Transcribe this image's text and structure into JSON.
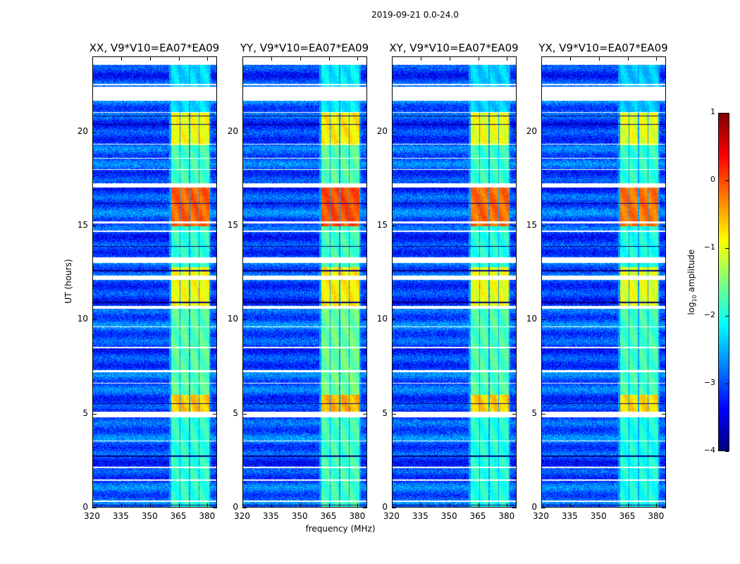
{
  "chart_data": {
    "type": "heatmap",
    "title": "2019-09-21 0.0-24.0",
    "xlabel": "frequency (MHz)",
    "ylabel": "UT (hours)",
    "xlim": [
      320,
      385
    ],
    "ylim": [
      0,
      24
    ],
    "xticks": [
      320,
      335,
      350,
      365,
      380
    ],
    "xtick_labels": [
      "320",
      "335",
      "350",
      "365",
      "380"
    ],
    "yticks": [
      0,
      5,
      10,
      15,
      20
    ],
    "ytick_labels": [
      "0",
      "5",
      "10",
      "15",
      "20"
    ],
    "panels": [
      {
        "title": "XX, V9*V10=EA07*EA09",
        "level_offset": 0
      },
      {
        "title": "YY, V9*V10=EA07*EA09",
        "level_offset": 0.1
      },
      {
        "title": "XY, V9*V10=EA07*EA09",
        "level_offset": -0.05
      },
      {
        "title": "YX, V9*V10=EA07*EA09",
        "level_offset": -0.1
      }
    ],
    "colorbar": {
      "label_main": "log",
      "label_sub": "10",
      "label_rest": " amplitude",
      "range": [
        -4,
        1
      ],
      "ticks": [
        1,
        0,
        -1,
        -2,
        -3,
        -4
      ],
      "tick_labels": [
        "1",
        "0",
        "−1",
        "−2",
        "−3",
        "−4"
      ],
      "colormap": "jet"
    },
    "background_log_amplitude": -3.0,
    "subbands_mhz": [
      [
        361,
        365.5
      ],
      [
        366,
        370.5
      ],
      [
        371,
        375.5
      ],
      [
        376,
        381
      ]
    ],
    "band_activity_log_amplitude": [
      {
        "t": [
          0,
          4.8
        ],
        "level": -1.9
      },
      {
        "t": [
          5.0,
          6.0
        ],
        "level": -0.6
      },
      {
        "t": [
          6.0,
          10.6
        ],
        "level": -1.7
      },
      {
        "t": [
          10.7,
          12.8
        ],
        "level": -0.9
      },
      {
        "t": [
          12.8,
          15.0
        ],
        "level": -1.9
      },
      {
        "t": [
          15.0,
          17.2
        ],
        "level": -0.1
      },
      {
        "t": [
          17.3,
          19.3
        ],
        "level": -1.8
      },
      {
        "t": [
          19.3,
          21.1
        ],
        "level": -0.9
      },
      {
        "t": [
          21.1,
          24.0
        ],
        "level": -2.3
      }
    ],
    "flagged_hours": [
      [
        21.7,
        22.45
      ],
      [
        22.5,
        22.6
      ],
      [
        17.05,
        17.3
      ],
      [
        13.05,
        13.35
      ],
      [
        12.15,
        12.35
      ],
      [
        10.6,
        10.75
      ],
      [
        4.8,
        5.1
      ],
      [
        1.4,
        1.5
      ],
      [
        0.3,
        0.35
      ],
      [
        2.1,
        2.15
      ],
      [
        3.5,
        3.55
      ],
      [
        6.6,
        6.65
      ],
      [
        7.2,
        7.3
      ],
      [
        8.5,
        8.55
      ],
      [
        9.6,
        9.65
      ],
      [
        14.7,
        14.75
      ],
      [
        15.15,
        15.25
      ],
      [
        18.0,
        18.05
      ],
      [
        18.6,
        18.65
      ],
      [
        19.35,
        19.4
      ],
      [
        21.05,
        21.1
      ],
      [
        23.6,
        24.0
      ]
    ],
    "null_hours": [
      [
        0.1,
        0.15
      ],
      [
        2.7,
        2.75
      ],
      [
        5.5,
        5.55
      ],
      [
        10.9,
        10.95
      ],
      [
        12.6,
        12.65
      ],
      [
        13.9,
        13.95
      ],
      [
        16.2,
        16.25
      ],
      [
        20.85,
        20.9
      ],
      [
        20.4,
        20.45
      ]
    ]
  }
}
